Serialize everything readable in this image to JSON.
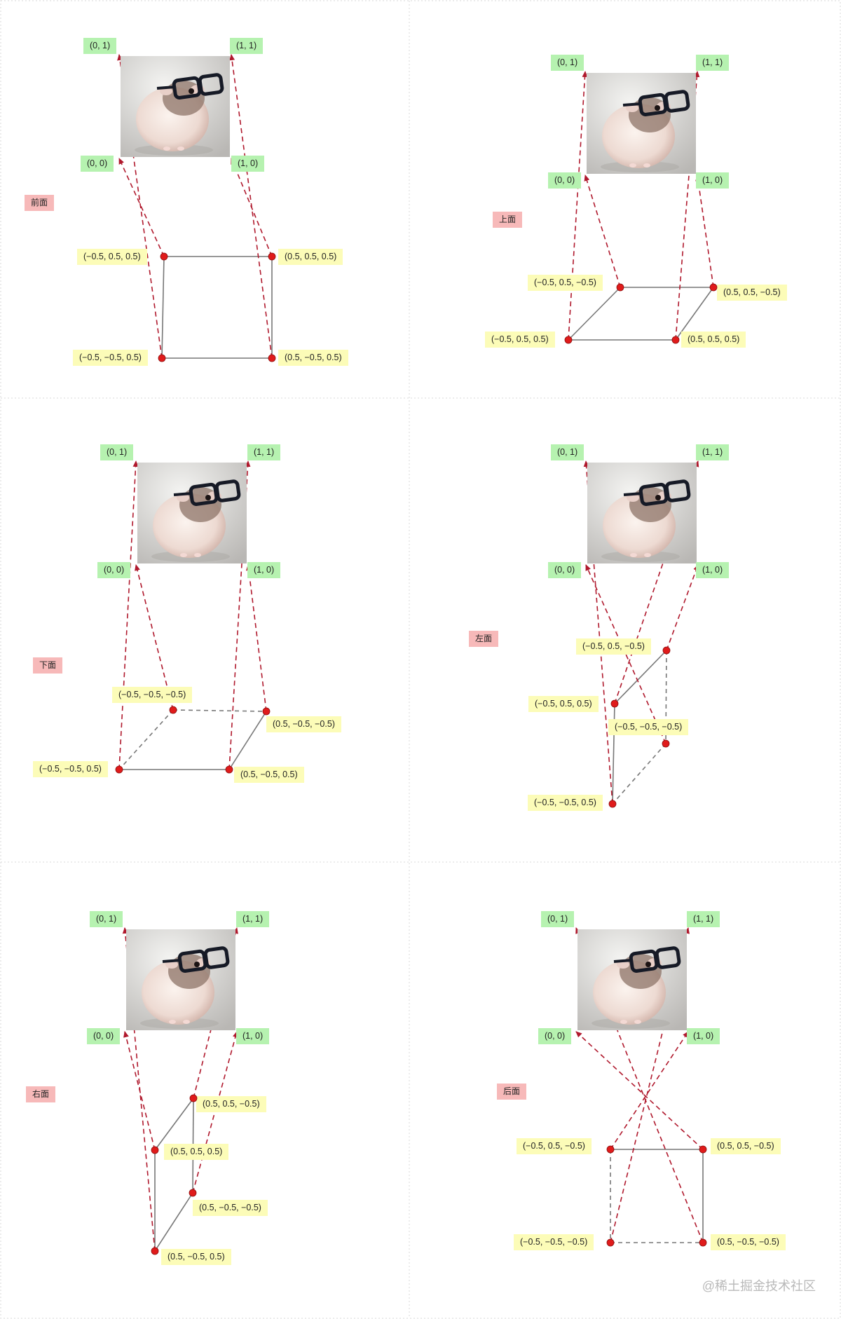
{
  "watermark": "@稀土掘金技术社区",
  "colors": {
    "edge": "#777777",
    "arrow": "#b0192d",
    "vertex": "#e01b1b",
    "uv_bg": "#b6f2b0",
    "pos_bg": "#fcfcb8",
    "face_bg": "#f7b9b9"
  },
  "uv": {
    "tl": "(0,  1)",
    "tr": "(1,  1)",
    "bl": "(0,  0)",
    "br": "(1,  0)"
  },
  "panels": [
    {
      "face": "前面",
      "vertices": [
        "(−0.5,  0.5,  0.5)",
        "(0.5,  0.5,  0.5)",
        "(−0.5,  −0.5,  0.5)",
        "(0.5,  −0.5,  0.5)"
      ]
    },
    {
      "face": "上面",
      "vertices": [
        "(−0.5,  0.5,  −0.5)",
        "(0.5,  0.5,  −0.5)",
        "(−0.5,  0.5,  0.5)",
        "(0.5,  0.5,  0.5)"
      ]
    },
    {
      "face": "下面",
      "vertices": [
        "(−0.5,  −0.5,  −0.5)",
        "(0.5,  −0.5,  −0.5)",
        "(−0.5,  −0.5,  0.5)",
        "(0.5,  −0.5,  0.5)"
      ]
    },
    {
      "face": "左面",
      "vertices": [
        "(−0.5,  0.5,  −0.5)",
        "(−0.5,  0.5,  0.5)",
        "(−0.5,  −0.5,  −0.5)",
        "(−0.5,  −0.5,  0.5)"
      ]
    },
    {
      "face": "右面",
      "vertices": [
        "(0.5,  0.5,  −0.5)",
        "(0.5,  0.5,  0.5)",
        "(0.5,  −0.5,  −0.5)",
        "(0.5,  −0.5,  0.5)"
      ]
    },
    {
      "face": "后面",
      "vertices": [
        "(−0.5,  0.5,  −0.5)",
        "(0.5,  0.5,  −0.5)",
        "(−0.5,  −0.5,  −0.5)",
        "(0.5,  −0.5,  −0.5)"
      ]
    }
  ]
}
